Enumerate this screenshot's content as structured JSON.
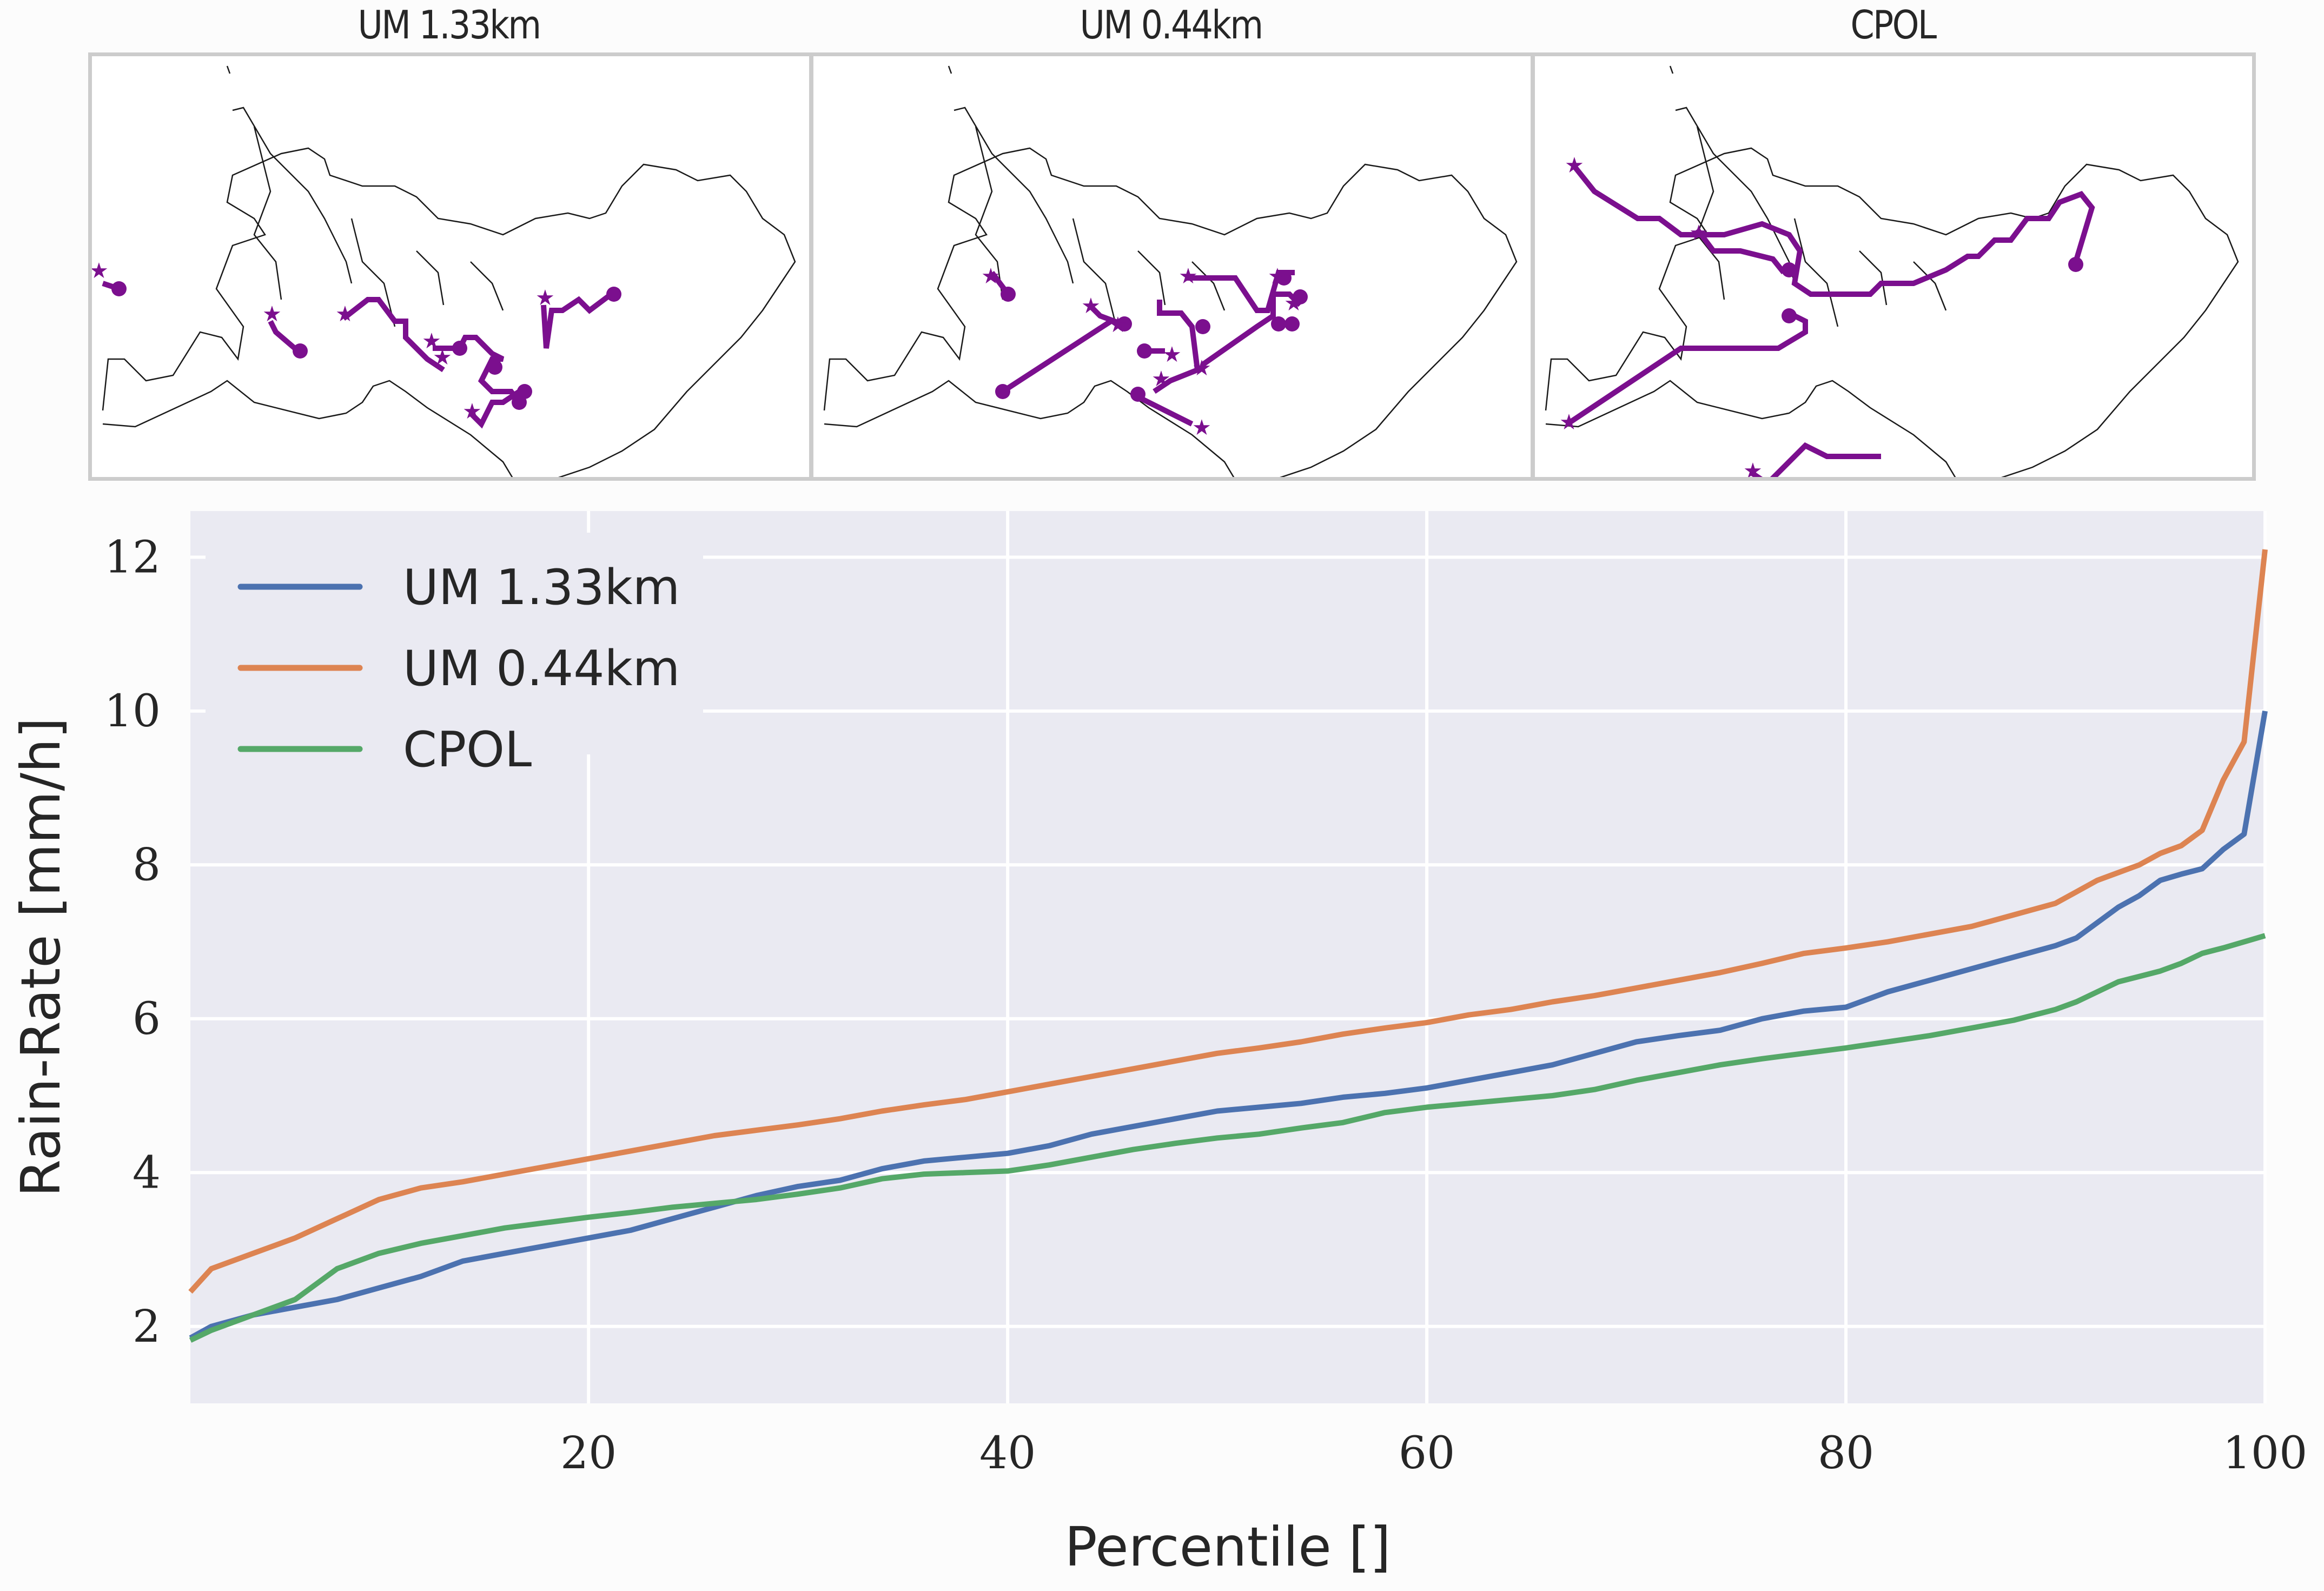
{
  "maps": [
    {
      "title": "UM 1.33km"
    },
    {
      "title": "UM 0.44km"
    },
    {
      "title": "CPOL"
    }
  ],
  "map_style": {
    "track_color": "#7b0f8e",
    "coast_color": "#1a1a1a",
    "frame_color": "#cccccc"
  },
  "chart_data": {
    "type": "line",
    "title": "",
    "xlabel": "Percentile []",
    "ylabel": "Rain-Rate [mm/h]",
    "xlim": [
      1,
      100
    ],
    "ylim": [
      1.0,
      12.6
    ],
    "xticks": [
      20,
      40,
      60,
      80,
      100
    ],
    "yticks": [
      2,
      4,
      6,
      8,
      10,
      12
    ],
    "grid": true,
    "background": "#eaeaf2",
    "legend_position": "top-left",
    "x": [
      1,
      2,
      4,
      6,
      8,
      10,
      12,
      14,
      16,
      18,
      20,
      22,
      24,
      26,
      28,
      30,
      32,
      34,
      36,
      38,
      40,
      42,
      44,
      46,
      48,
      50,
      52,
      54,
      56,
      58,
      60,
      62,
      64,
      66,
      68,
      70,
      72,
      74,
      76,
      78,
      80,
      82,
      84,
      86,
      88,
      90,
      91,
      92,
      93,
      94,
      95,
      96,
      97,
      98,
      99,
      100
    ],
    "series": [
      {
        "name": "UM 1.33km",
        "color": "#4c72b0",
        "values": [
          1.85,
          2.0,
          2.15,
          2.25,
          2.35,
          2.5,
          2.65,
          2.85,
          2.95,
          3.05,
          3.15,
          3.25,
          3.4,
          3.55,
          3.7,
          3.82,
          3.9,
          4.05,
          4.15,
          4.2,
          4.25,
          4.35,
          4.5,
          4.6,
          4.7,
          4.8,
          4.85,
          4.9,
          4.98,
          5.03,
          5.1,
          5.2,
          5.3,
          5.4,
          5.55,
          5.7,
          5.78,
          5.85,
          6.0,
          6.1,
          6.15,
          6.35,
          6.5,
          6.65,
          6.8,
          6.95,
          7.05,
          7.25,
          7.45,
          7.6,
          7.8,
          7.88,
          7.95,
          8.2,
          8.4,
          10.0
        ]
      },
      {
        "name": "UM 0.44km",
        "color": "#dd8452",
        "values": [
          2.45,
          2.75,
          2.95,
          3.15,
          3.4,
          3.65,
          3.8,
          3.88,
          3.98,
          4.08,
          4.18,
          4.28,
          4.38,
          4.48,
          4.55,
          4.62,
          4.7,
          4.8,
          4.88,
          4.95,
          5.05,
          5.15,
          5.25,
          5.35,
          5.45,
          5.55,
          5.62,
          5.7,
          5.8,
          5.88,
          5.95,
          6.05,
          6.12,
          6.22,
          6.3,
          6.4,
          6.5,
          6.6,
          6.72,
          6.85,
          6.92,
          7.0,
          7.1,
          7.2,
          7.35,
          7.5,
          7.65,
          7.8,
          7.9,
          8.0,
          8.15,
          8.25,
          8.45,
          9.1,
          9.6,
          12.1
        ]
      },
      {
        "name": "CPOL",
        "color": "#55a868",
        "values": [
          1.82,
          1.95,
          2.15,
          2.35,
          2.75,
          2.95,
          3.08,
          3.18,
          3.28,
          3.35,
          3.42,
          3.48,
          3.55,
          3.6,
          3.65,
          3.72,
          3.8,
          3.92,
          3.98,
          4.0,
          4.02,
          4.1,
          4.2,
          4.3,
          4.38,
          4.45,
          4.5,
          4.58,
          4.65,
          4.78,
          4.85,
          4.9,
          4.95,
          5.0,
          5.08,
          5.2,
          5.3,
          5.4,
          5.48,
          5.55,
          5.62,
          5.7,
          5.78,
          5.88,
          5.98,
          6.12,
          6.22,
          6.35,
          6.48,
          6.55,
          6.62,
          6.72,
          6.85,
          6.92,
          7.0,
          7.08
        ]
      }
    ]
  }
}
